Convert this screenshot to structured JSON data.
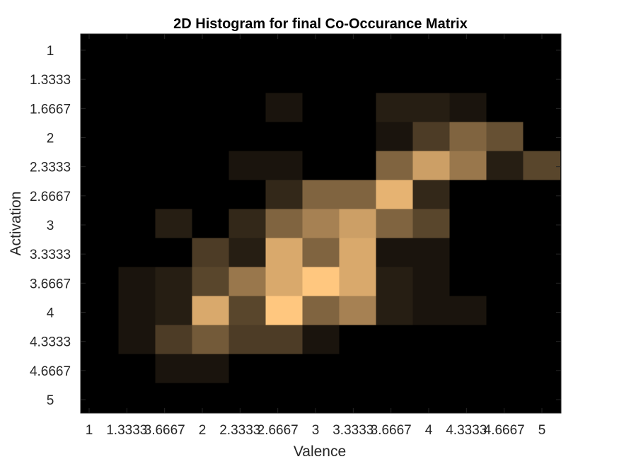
{
  "chart_data": {
    "type": "heatmap",
    "title": "2D Histogram for final Co-Occurance Matrix",
    "xlabel": "Valence",
    "ylabel": "Activation",
    "x_ticks": [
      "1",
      "1.3333",
      "3.6667",
      "2",
      "2.3333",
      "2.6667",
      "3",
      "3.3333",
      "3.6667",
      "4",
      "4.3333",
      "4.6667",
      "5"
    ],
    "y_ticks": [
      "1",
      "1.3333",
      "1.6667",
      "2",
      "2.3333",
      "2.6667",
      "3",
      "3.3333",
      "3.6667",
      "4",
      "4.3333",
      "4.6667",
      "5"
    ],
    "xlim": [
      1,
      5
    ],
    "ylim": [
      1,
      5
    ],
    "y_reversed": true,
    "grid": false,
    "colormap": "copper",
    "color_low": "#000000",
    "color_high": "#ffc77f",
    "background_color": "#000000",
    "cols": 13,
    "rows": 13,
    "values": [
      [
        0,
        0,
        0,
        0,
        0,
        0,
        0,
        0,
        0,
        0,
        0,
        0,
        0
      ],
      [
        0,
        0,
        0,
        0,
        0,
        0,
        0,
        0,
        0,
        0,
        0,
        0,
        0
      ],
      [
        0,
        0,
        0,
        0,
        0,
        1,
        0,
        0,
        1.5,
        1.5,
        1,
        0,
        0
      ],
      [
        0,
        0,
        0,
        0,
        0,
        0,
        0,
        0,
        1,
        3,
        5,
        4,
        0
      ],
      [
        0,
        0,
        0,
        0,
        1,
        1,
        0,
        0,
        5,
        8,
        6,
        1.5,
        3.5
      ],
      [
        0,
        0,
        0,
        0,
        0,
        2,
        5,
        5,
        9,
        2,
        0,
        0,
        0
      ],
      [
        0,
        0,
        1.5,
        0,
        2,
        5,
        6.5,
        8,
        5,
        3.5,
        0,
        0,
        0
      ],
      [
        0,
        0,
        0,
        3,
        1.5,
        8.5,
        5,
        8.5,
        1,
        1,
        0,
        0,
        0
      ],
      [
        0,
        1,
        1.5,
        3.5,
        6,
        8.5,
        10,
        8.5,
        1.5,
        1,
        0,
        0,
        0
      ],
      [
        0,
        1,
        1.5,
        8.5,
        3.5,
        10,
        5,
        6.5,
        1.5,
        1,
        1,
        0,
        0
      ],
      [
        0,
        1,
        3,
        4.5,
        3,
        3,
        1,
        0,
        0,
        0,
        0,
        0,
        0
      ],
      [
        0,
        0,
        1,
        1,
        0,
        0,
        0,
        0,
        0,
        0,
        0,
        0,
        0
      ],
      [
        0,
        0,
        0,
        0,
        0,
        0,
        0,
        0,
        0,
        0,
        0,
        0,
        0
      ]
    ],
    "vmax": 10
  }
}
